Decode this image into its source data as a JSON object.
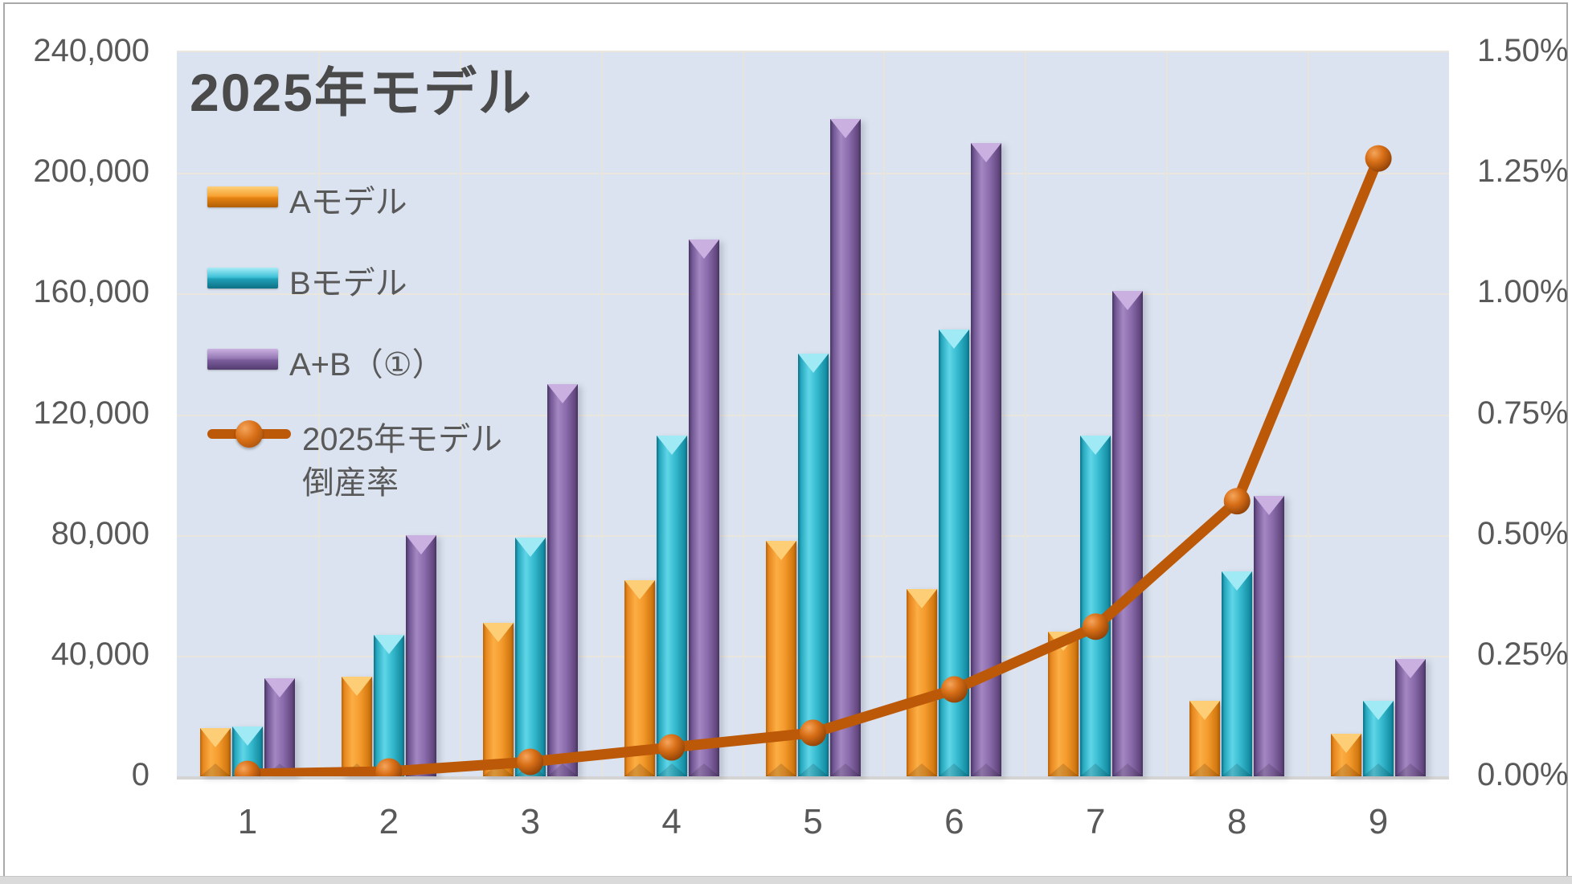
{
  "title": "2025年モデル",
  "colors": {
    "orange": "#F59B2D",
    "cyan": "#2BB3C9",
    "purple": "#8667A8",
    "line": "#BC5909",
    "plot_background": "#DBE3F0",
    "gridline": "#EAE6DE",
    "axis_text": "#595959",
    "title_text": "#4A4A4A"
  },
  "legend": {
    "items": [
      {
        "label": "Aモデル",
        "series": "a",
        "type": "bar"
      },
      {
        "label": "Bモデル",
        "series": "b",
        "type": "bar"
      },
      {
        "label": "A+B（①）",
        "series": "ab",
        "type": "bar"
      },
      {
        "label": "2025年モデル",
        "label_line2": "倒産率",
        "series": "rate",
        "type": "line"
      }
    ]
  },
  "left_axis": {
    "ticks": [
      "240,000",
      "200,000",
      "160,000",
      "120,000",
      "80,000",
      "40,000",
      "0"
    ]
  },
  "right_axis": {
    "ticks": [
      "1.50%",
      "1.25%",
      "1.00%",
      "0.75%",
      "0.50%",
      "0.25%",
      "0.00%"
    ]
  },
  "x_axis": {
    "labels": [
      "1",
      "2",
      "3",
      "4",
      "5",
      "6",
      "7",
      "8",
      "9"
    ]
  },
  "chart_data": {
    "type": "combo-bar-line",
    "title": "2025年モデル",
    "categories": [
      1,
      2,
      3,
      4,
      5,
      6,
      7,
      8,
      9
    ],
    "series": [
      {
        "name": "Aモデル",
        "type": "bar",
        "axis": "left",
        "values": [
          16000,
          33000,
          51000,
          65000,
          78000,
          62000,
          48000,
          25000,
          14000
        ]
      },
      {
        "name": "Bモデル",
        "type": "bar",
        "axis": "left",
        "values": [
          16500,
          47000,
          79000,
          113000,
          140000,
          148000,
          113000,
          68000,
          25000
        ]
      },
      {
        "name": "A+B（①）",
        "type": "bar",
        "axis": "left",
        "values": [
          32500,
          80000,
          130000,
          178000,
          218000,
          210000,
          161000,
          93000,
          39000
        ]
      },
      {
        "name": "2025年モデル倒産率",
        "type": "line",
        "axis": "right",
        "values_percent": [
          0.005,
          0.01,
          0.03,
          0.06,
          0.09,
          0.18,
          0.31,
          0.57,
          1.28
        ]
      }
    ],
    "left_ylim": [
      0,
      240000
    ],
    "right_ylim": [
      0,
      1.5
    ],
    "grid": true,
    "legend_position": "inside-top-left"
  }
}
